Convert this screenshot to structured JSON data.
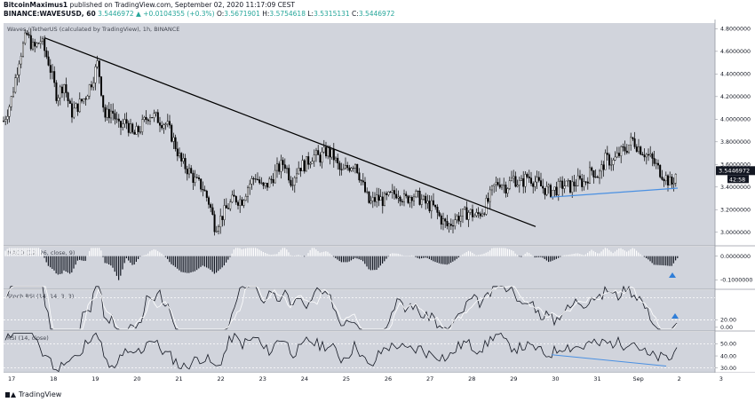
{
  "header": {
    "author": "BitcoinMaximus1",
    "published": "published on TradingView.com, September 02, 2020 11:17:09 CEST",
    "symbol": "BINANCE:WAVESUSD, 60",
    "last": "3.5446972",
    "change": "▲ +0.0104355 (+0.3%)",
    "o_label": "O:",
    "o_value": "3.5671901",
    "h_label": "H:",
    "h_value": "3.5754618",
    "l_label": "L:",
    "l_value": "3.5315131",
    "c_label": "C:",
    "c_value": "3.5446972"
  },
  "footer": {
    "brand": "TradingView"
  },
  "colors": {
    "plot_bg": "#d1d4dc",
    "candle": "#000000",
    "trendline": "#000000",
    "support": "#4a90e2",
    "price_badge": "#131722",
    "arrow": "#2f7ed8"
  },
  "chart_data": [
    {
      "type": "candlestick",
      "title": "Waves / TetherUS (calculated by TradingView), 1h, BINANCE",
      "x_ticks": [
        "17",
        "18",
        "19",
        "20",
        "21",
        "22",
        "23",
        "24",
        "25",
        "26",
        "27",
        "28",
        "29",
        "30",
        "31",
        "Sep",
        "2",
        "3"
      ],
      "y_ticks": [
        "4.8000000",
        "4.6000000",
        "4.4000000",
        "4.2000000",
        "4.0000000",
        "3.8000000",
        "3.6000000",
        "3.4000000",
        "3.2000000",
        "3.0000000"
      ],
      "ylim": [
        2.88,
        4.85
      ],
      "last_price_label": "3.5446972",
      "countdown": "42:58",
      "close_path": [
        [
          0,
          3.9
        ],
        [
          12,
          4.15
        ],
        [
          22,
          4.55
        ],
        [
          30,
          4.75
        ],
        [
          38,
          4.62
        ],
        [
          46,
          4.7
        ],
        [
          55,
          4.5
        ],
        [
          64,
          4.2
        ],
        [
          72,
          4.32
        ],
        [
          80,
          4.05
        ],
        [
          88,
          4.12
        ],
        [
          96,
          4.2
        ],
        [
          104,
          4.35
        ],
        [
          110,
          4.5
        ],
        [
          118,
          4.02
        ],
        [
          126,
          4.08
        ],
        [
          134,
          3.92
        ],
        [
          142,
          3.98
        ],
        [
          150,
          3.85
        ],
        [
          158,
          3.92
        ],
        [
          168,
          4.05
        ],
        [
          178,
          4.0
        ],
        [
          188,
          3.95
        ],
        [
          196,
          3.8
        ],
        [
          204,
          3.62
        ],
        [
          212,
          3.55
        ],
        [
          220,
          3.45
        ],
        [
          228,
          3.4
        ],
        [
          236,
          3.25
        ],
        [
          242,
          3.05
        ],
        [
          248,
          3.12
        ],
        [
          256,
          3.22
        ],
        [
          264,
          3.3
        ],
        [
          272,
          3.28
        ],
        [
          280,
          3.42
        ],
        [
          288,
          3.5
        ],
        [
          296,
          3.38
        ],
        [
          304,
          3.45
        ],
        [
          312,
          3.55
        ],
        [
          320,
          3.62
        ],
        [
          328,
          3.45
        ],
        [
          336,
          3.58
        ],
        [
          344,
          3.6
        ],
        [
          352,
          3.68
        ],
        [
          360,
          3.66
        ],
        [
          368,
          3.72
        ],
        [
          376,
          3.66
        ],
        [
          384,
          3.52
        ],
        [
          392,
          3.58
        ],
        [
          400,
          3.62
        ],
        [
          408,
          3.42
        ],
        [
          416,
          3.25
        ],
        [
          424,
          3.3
        ],
        [
          432,
          3.28
        ],
        [
          440,
          3.32
        ],
        [
          448,
          3.36
        ],
        [
          456,
          3.28
        ],
        [
          464,
          3.34
        ],
        [
          472,
          3.3
        ],
        [
          480,
          3.25
        ],
        [
          488,
          3.22
        ],
        [
          496,
          3.12
        ],
        [
          504,
          3.05
        ],
        [
          512,
          3.12
        ],
        [
          520,
          3.15
        ],
        [
          528,
          3.18
        ],
        [
          536,
          3.14
        ],
        [
          544,
          3.2
        ],
        [
          550,
          3.28
        ],
        [
          556,
          3.4
        ],
        [
          562,
          3.45
        ],
        [
          570,
          3.4
        ],
        [
          578,
          3.48
        ],
        [
          586,
          3.42
        ],
        [
          594,
          3.5
        ],
        [
          602,
          3.45
        ],
        [
          610,
          3.4
        ],
        [
          618,
          3.36
        ],
        [
          626,
          3.38
        ],
        [
          634,
          3.42
        ],
        [
          642,
          3.4
        ],
        [
          650,
          3.45
        ],
        [
          658,
          3.44
        ],
        [
          666,
          3.55
        ],
        [
          674,
          3.5
        ],
        [
          682,
          3.65
        ],
        [
          690,
          3.62
        ],
        [
          698,
          3.7
        ],
        [
          706,
          3.75
        ],
        [
          712,
          3.82
        ],
        [
          718,
          3.76
        ],
        [
          726,
          3.7
        ],
        [
          734,
          3.64
        ],
        [
          742,
          3.55
        ],
        [
          750,
          3.48
        ],
        [
          756,
          3.42
        ],
        [
          762,
          3.54
        ]
      ],
      "trendline": {
        "from": [
          50,
          4.72
        ],
        "to": [
          603,
          3.05
        ]
      },
      "support_line": {
        "from": [
          620,
          3.31
        ],
        "to": [
          763,
          3.39
        ]
      }
    },
    {
      "type": "bar",
      "name": "MACD (12, 26, close, 9)",
      "y_ticks": [
        "0.0000000",
        "-0.1000000"
      ],
      "ylim": [
        -0.14,
        0.04
      ]
    },
    {
      "type": "line",
      "name": "Stoch RSI (14, 14, 3, 3)",
      "y_ticks": [
        "20.00",
        "0.00"
      ],
      "ylim": [
        -10,
        100
      ]
    },
    {
      "type": "line",
      "name": "RSI (14, close)",
      "y_ticks": [
        "50.00",
        "40.00",
        "30.00"
      ],
      "ylim": [
        26,
        60
      ]
    }
  ]
}
